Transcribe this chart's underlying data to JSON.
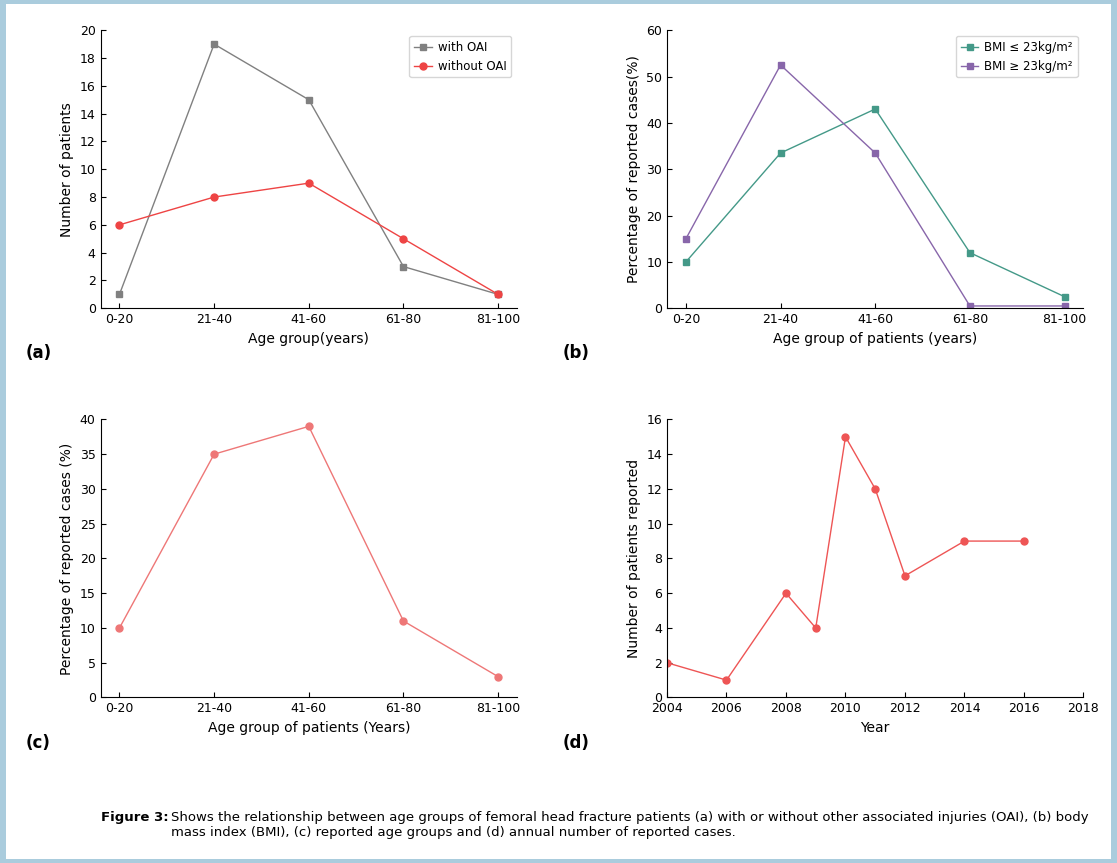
{
  "panel_a": {
    "x_labels": [
      "0-20",
      "21-40",
      "41-60",
      "61-80",
      "81-100"
    ],
    "with_OAI": [
      1,
      19,
      15,
      3,
      1
    ],
    "without_OAI": [
      6,
      8,
      9,
      5,
      1
    ],
    "xlabel": "Age group(years)",
    "ylabel": "Number of patients",
    "ylim": [
      0,
      20
    ],
    "yticks": [
      0,
      2,
      4,
      6,
      8,
      10,
      12,
      14,
      16,
      18,
      20
    ],
    "label_a": "(a)",
    "legend_with": "with OAI",
    "legend_without": "without OAI",
    "color_with": "#808080",
    "color_without": "#EE4444",
    "marker_with": "s",
    "marker_without": "o"
  },
  "panel_b": {
    "x_labels": [
      "0-20",
      "21-40",
      "41-60",
      "61-80",
      "81-100"
    ],
    "bmi_low": [
      10,
      33.5,
      43,
      12,
      2.5
    ],
    "bmi_high": [
      15,
      52.5,
      33.5,
      0.5,
      0.5
    ],
    "xlabel": "Age group of patients (years)",
    "ylabel": "Percentage of reported cases(%)",
    "ylim": [
      0,
      60
    ],
    "yticks": [
      0,
      10,
      20,
      30,
      40,
      50,
      60
    ],
    "label_b": "(b)",
    "legend_low": "BMI ≤ 23kg/m²",
    "legend_high": "BMI ≥ 23kg/m²",
    "color_low": "#449988",
    "color_high": "#8866AA",
    "marker_low": "s",
    "marker_high": "s"
  },
  "panel_c": {
    "x_labels": [
      "0-20",
      "21-40",
      "41-60",
      "61-80",
      "81-100"
    ],
    "values": [
      10,
      35,
      39,
      11,
      3
    ],
    "xlabel": "Age group of patients (Years)",
    "ylabel": "Percentage of reported cases (%)",
    "ylim": [
      0,
      40
    ],
    "yticks": [
      0,
      5,
      10,
      15,
      20,
      25,
      30,
      35,
      40
    ],
    "label_c": "(c)",
    "color": "#EE7777",
    "marker": "o"
  },
  "panel_d": {
    "x": [
      2004,
      2006,
      2008,
      2009,
      2010,
      2011,
      2012,
      2014,
      2016
    ],
    "values": [
      2,
      1,
      6,
      4,
      15,
      12,
      7,
      9,
      9
    ],
    "xlabel": "Year",
    "ylabel": "Number of patients reported",
    "xlim": [
      2004,
      2018
    ],
    "ylim": [
      0,
      16
    ],
    "xticks": [
      2004,
      2006,
      2008,
      2010,
      2012,
      2014,
      2016,
      2018
    ],
    "yticks": [
      0,
      2,
      4,
      6,
      8,
      10,
      12,
      14,
      16
    ],
    "label_d": "(d)",
    "color": "#EE5555",
    "marker": "o"
  },
  "caption_bold": "Figure 3: ",
  "caption_normal": "Shows the relationship between age groups of femoral head fracture patients (a) with or without other associated injuries (OAI), (b) body mass index (BMI), (c) reported age groups and (d) annual number of reported cases.",
  "bg_color": "#FFFFFF",
  "border_color": "#AACCDD"
}
